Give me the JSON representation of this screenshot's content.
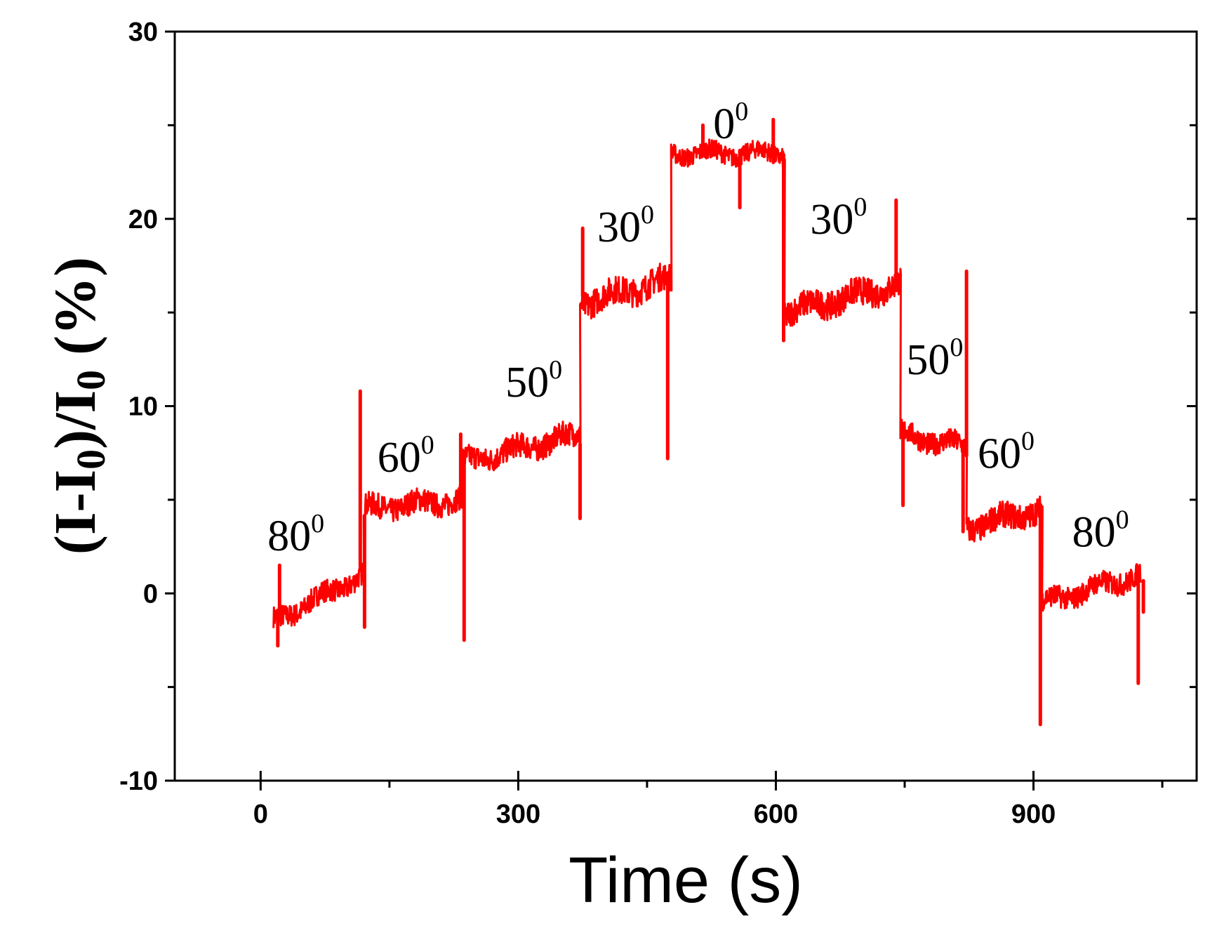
{
  "chart_data": {
    "type": "line",
    "xlabel": "Time (s)",
    "ylabel": {
      "main": "(I-I",
      "sub": "0",
      "mid": ")/I",
      "sub2": "0",
      "end": " (%)"
    },
    "xlim": [
      -100,
      1090
    ],
    "ylim": [
      -10,
      30
    ],
    "x_ticks": [
      0,
      300,
      600,
      900
    ],
    "x_ticks_minor": [
      150,
      450,
      750,
      1050
    ],
    "y_ticks": [
      -10,
      0,
      10,
      20,
      30
    ],
    "y_ticks_minor": [
      -5,
      5,
      15,
      25
    ],
    "grid": false,
    "series": [
      {
        "color": "#ff0000",
        "segments": [
          {
            "x_start": 15,
            "x_end": 120,
            "y_start": -1.5,
            "y_end": 1.0,
            "noise": 1.2
          },
          {
            "x_start": 120,
            "x_end": 235,
            "y_start": 4.5,
            "y_end": 5.0,
            "noise": 1.3
          },
          {
            "x_start": 235,
            "x_end": 372,
            "y_start": 7.0,
            "y_end": 8.5,
            "noise": 1.3
          },
          {
            "x_start": 372,
            "x_end": 478,
            "y_start": 15.5,
            "y_end": 16.8,
            "noise": 1.5
          },
          {
            "x_start": 478,
            "x_end": 610,
            "y_start": 23.5,
            "y_end": 23.5,
            "noise": 1.0
          },
          {
            "x_start": 610,
            "x_end": 745,
            "y_start": 15.0,
            "y_end": 16.5,
            "noise": 1.5
          },
          {
            "x_start": 745,
            "x_end": 822,
            "y_start": 8.5,
            "y_end": 7.8,
            "noise": 1.2
          },
          {
            "x_start": 822,
            "x_end": 910,
            "y_start": 3.5,
            "y_end": 4.5,
            "noise": 1.4
          },
          {
            "x_start": 910,
            "x_end": 1025,
            "y_start": -0.5,
            "y_end": 1.0,
            "noise": 1.2
          }
        ],
        "spikes": [
          {
            "x": 20,
            "y": -2.8
          },
          {
            "x": 22,
            "y": 1.5
          },
          {
            "x": 116,
            "y": 10.8
          },
          {
            "x": 121,
            "y": -1.8
          },
          {
            "x": 233,
            "y": 8.5
          },
          {
            "x": 237,
            "y": -2.5
          },
          {
            "x": 372,
            "y": 4.0
          },
          {
            "x": 375,
            "y": 19.5
          },
          {
            "x": 474,
            "y": 7.2
          },
          {
            "x": 479,
            "y": 23.8
          },
          {
            "x": 515,
            "y": 25.0
          },
          {
            "x": 558,
            "y": 20.6
          },
          {
            "x": 597,
            "y": 25.3
          },
          {
            "x": 609,
            "y": 13.5
          },
          {
            "x": 740,
            "y": 21.0
          },
          {
            "x": 748,
            "y": 4.7
          },
          {
            "x": 818,
            "y": 3.3
          },
          {
            "x": 822,
            "y": 17.2
          },
          {
            "x": 908,
            "y": -7.0
          },
          {
            "x": 1022,
            "y": -4.8
          },
          {
            "x": 1028,
            "y": -1.0
          }
        ]
      }
    ],
    "annotations": [
      {
        "text": "80",
        "sup": "0",
        "x": 8,
        "y": 2.3
      },
      {
        "text": "60",
        "sup": "0",
        "x": 136,
        "y": 6.5
      },
      {
        "text": "50",
        "sup": "0",
        "x": 285,
        "y": 10.5
      },
      {
        "text": "30",
        "sup": "0",
        "x": 392,
        "y": 18.8
      },
      {
        "text": "0",
        "sup": "0",
        "x": 527,
        "y": 24.3
      },
      {
        "text": "30",
        "sup": "0",
        "x": 640,
        "y": 19.2
      },
      {
        "text": "50",
        "sup": "0",
        "x": 752,
        "y": 11.7
      },
      {
        "text": "60",
        "sup": "0",
        "x": 835,
        "y": 6.7
      },
      {
        "text": "80",
        "sup": "0",
        "x": 945,
        "y": 2.5
      }
    ]
  }
}
